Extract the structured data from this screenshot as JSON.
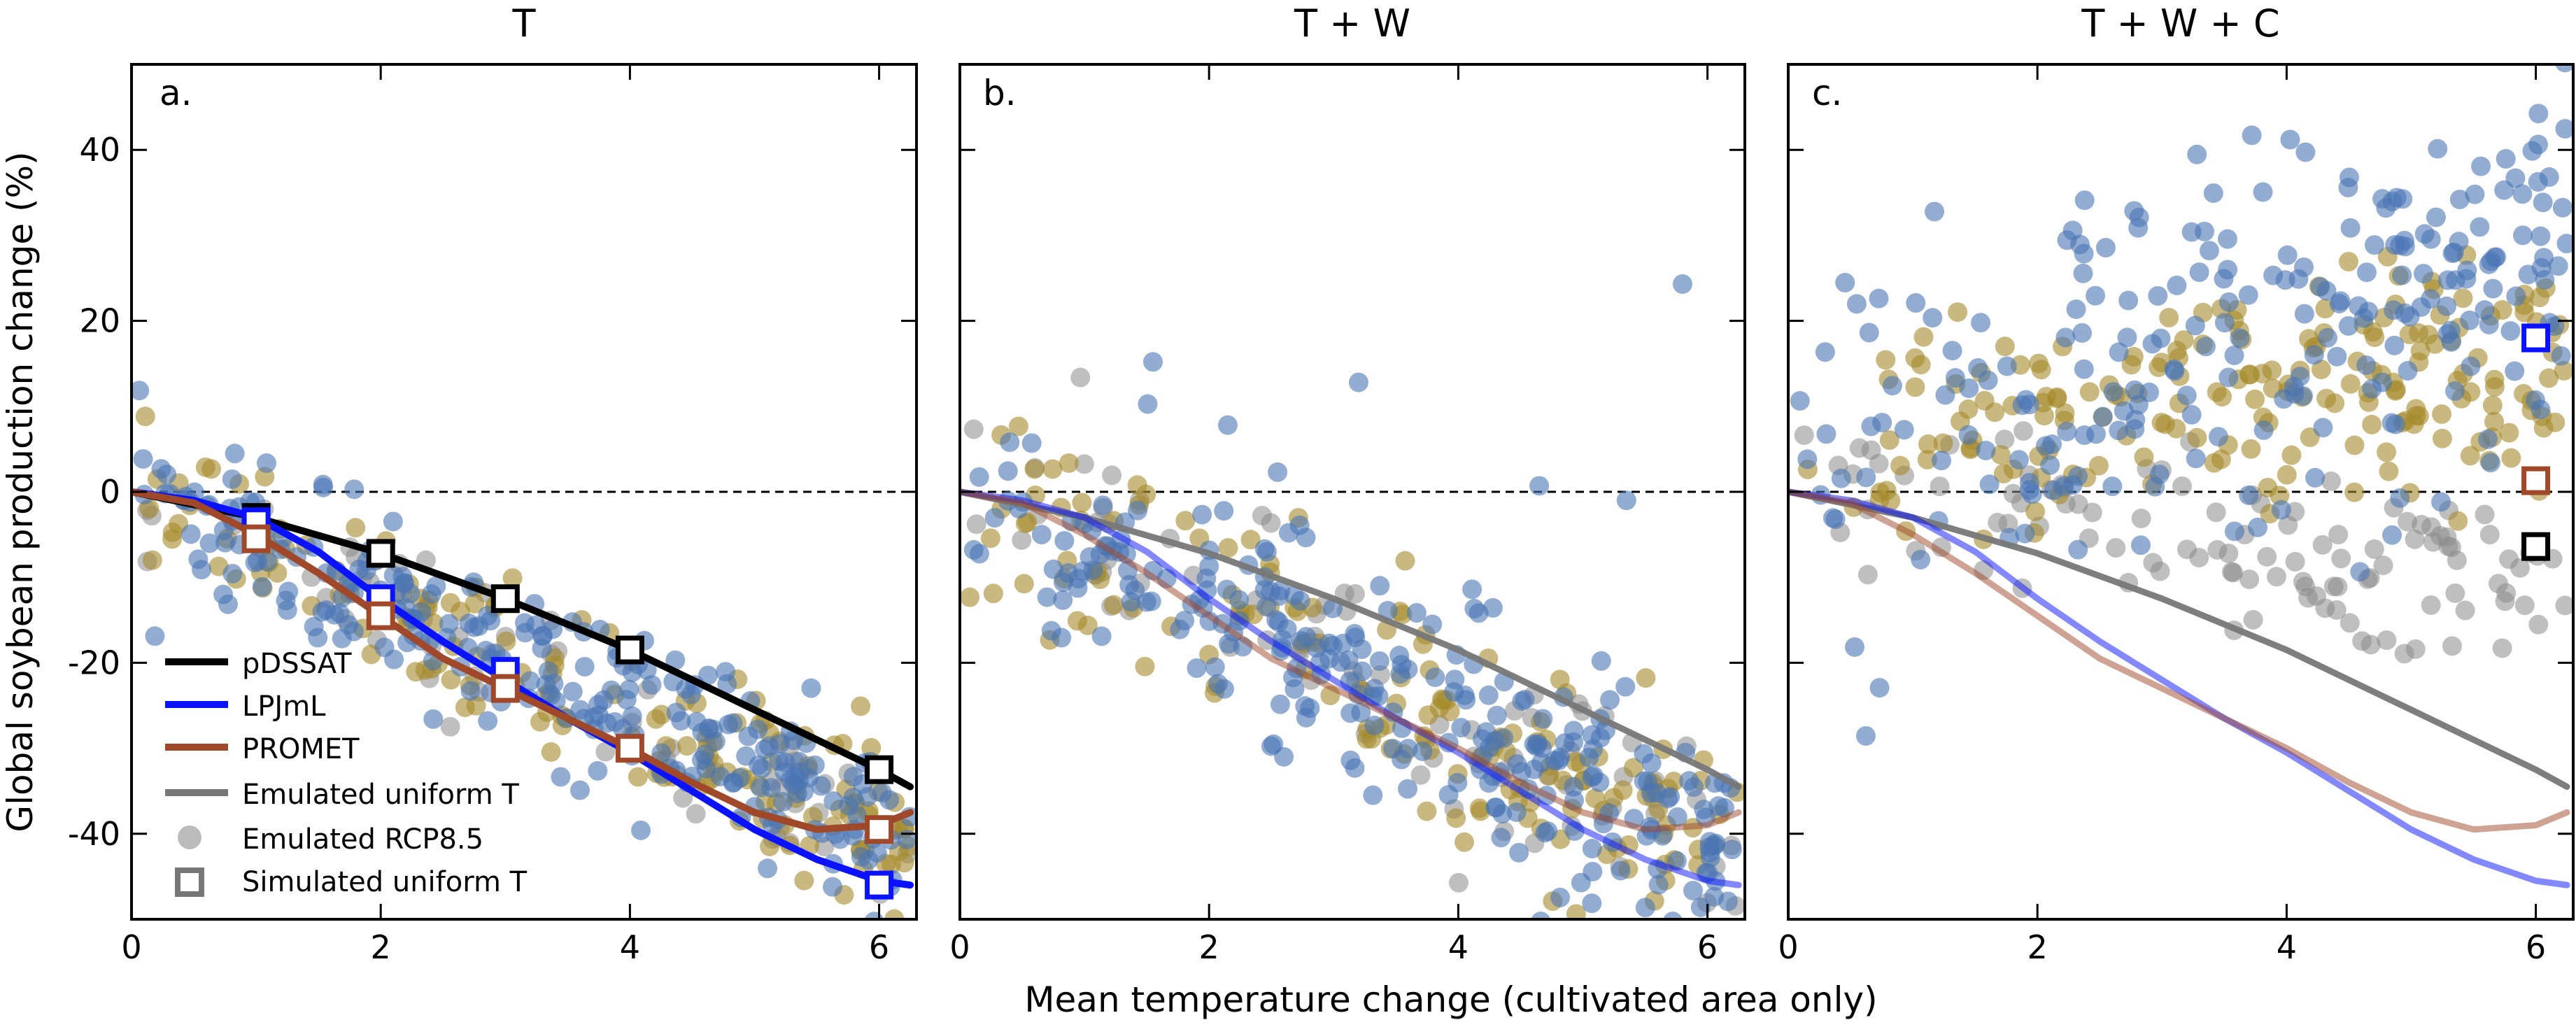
{
  "figure": {
    "ylabel": "Global soybean production change (%)",
    "xlabel": "Mean temperature change (cultivated area only)"
  },
  "colors": {
    "pDSSAT": "#000000",
    "LPJmL": "#0a12ff",
    "PROMET": "#a0482a",
    "emulated_uniform": "#777777",
    "scatter_blue": "#4a74b4",
    "scatter_gold": "#a58a2c",
    "scatter_grey": "#8a8a8a",
    "zero_line": "#000000"
  },
  "legend": {
    "items": [
      {
        "label": "pDSSAT",
        "style": "line",
        "color": "#000000"
      },
      {
        "label": "LPJmL",
        "style": "line",
        "color": "#0a12ff"
      },
      {
        "label": "PROMET",
        "style": "line",
        "color": "#a0482a"
      },
      {
        "label": "Emulated uniform T",
        "style": "line",
        "color": "#777777"
      },
      {
        "label": "Emulated RCP8.5",
        "style": "dot",
        "color": "#bbbbbb"
      },
      {
        "label": "Simulated uniform T",
        "style": "square",
        "color": "#777777"
      }
    ],
    "placement": "lower-left of panel a"
  },
  "chart_data": [
    {
      "type": "scatter",
      "title": "T",
      "panel_label": "a.",
      "xlim": [
        0,
        6.3
      ],
      "ylim": [
        -50,
        50
      ],
      "xticks": [
        0,
        2,
        4,
        6
      ],
      "yticks": [
        -40,
        -20,
        0,
        20,
        40
      ],
      "ytick_labels": [
        "-40",
        "-20",
        "0",
        "20",
        "40"
      ],
      "zero_line": true,
      "cloud": {
        "model": "slope",
        "slope": -6.5,
        "spread": 4.5,
        "xmax": 6.25,
        "counts": {
          "blue": 260,
          "gold": 160,
          "grey": 60
        }
      },
      "curves": [
        {
          "name": "pDSSAT",
          "x": [
            0,
            1,
            2,
            3,
            4,
            5,
            6,
            6.25
          ],
          "y": [
            0,
            -3,
            -7.2,
            -12.5,
            -18.5,
            -25.5,
            -32.5,
            -34.5
          ],
          "style": "solid"
        },
        {
          "name": "LPJmL",
          "x": [
            0,
            0.5,
            1,
            1.5,
            2,
            2.5,
            3,
            3.5,
            4,
            4.5,
            5,
            5.5,
            6,
            6.25
          ],
          "y": [
            0,
            -1,
            -3,
            -7,
            -12.5,
            -17.5,
            -22,
            -26.5,
            -30.5,
            -35,
            -39.5,
            -43,
            -45.5,
            -46
          ],
          "style": "solid"
        },
        {
          "name": "PROMET",
          "x": [
            0,
            0.5,
            1,
            1.5,
            2,
            2.5,
            3,
            3.5,
            4,
            4.5,
            5,
            5.5,
            6,
            6.25
          ],
          "y": [
            0,
            -1.3,
            -5,
            -9.5,
            -14.5,
            -19.5,
            -23,
            -26.5,
            -30,
            -34,
            -37.5,
            -39.5,
            -39,
            -37.5
          ],
          "style": "solid"
        }
      ],
      "squares": [
        {
          "series": "pDSSAT",
          "x": [
            1,
            2,
            3,
            4,
            6
          ],
          "y": [
            -3,
            -7.2,
            -12.5,
            -18.5,
            -32.5
          ]
        },
        {
          "series": "LPJmL",
          "x": [
            1,
            2,
            3,
            6
          ],
          "y": [
            -3.5,
            -12.5,
            -21,
            -46
          ]
        },
        {
          "series": "PROMET",
          "x": [
            1,
            2,
            3,
            4,
            6
          ],
          "y": [
            -5.5,
            -14.5,
            -23,
            -30,
            -39.5
          ]
        }
      ]
    },
    {
      "type": "scatter",
      "title": "T + W",
      "panel_label": "b.",
      "xlim": [
        0,
        6.3
      ],
      "ylim": [
        -50,
        50
      ],
      "xticks": [
        0,
        2,
        4,
        6
      ],
      "yticks": [
        -40,
        -20,
        0,
        20,
        40
      ],
      "ytick_labels": [],
      "zero_line": true,
      "cloud": {
        "model": "slope",
        "slope": -6.8,
        "spread": 6.5,
        "xmax": 6.25,
        "counts": {
          "blue": 270,
          "gold": 150,
          "grey": 80
        }
      },
      "outliers": [
        {
          "x": 1.55,
          "y": 15.2
        },
        {
          "x": 2.15,
          "y": 7.8
        },
        {
          "x": 3.2,
          "y": 12.8
        },
        {
          "x": 2.55,
          "y": 2.3
        },
        {
          "x": 5.8,
          "y": 24.3
        },
        {
          "x": 4.65,
          "y": 0.7
        },
        {
          "x": 5.35,
          "y": -1
        },
        {
          "x": 0.4,
          "y": 5.8
        },
        {
          "x": 2.6,
          "y": -31
        }
      ],
      "curves": [
        {
          "name": "pDSSAT",
          "x": [
            0,
            1,
            2,
            3,
            4,
            5,
            6,
            6.25
          ],
          "y": [
            0,
            -3,
            -7.2,
            -12.5,
            -18.5,
            -25.5,
            -32.5,
            -34.5
          ],
          "style": "emulated"
        },
        {
          "name": "LPJmL",
          "x": [
            0,
            0.5,
            1,
            1.5,
            2,
            2.5,
            3,
            3.5,
            4,
            4.5,
            5,
            5.5,
            6,
            6.25
          ],
          "y": [
            0,
            -1,
            -3,
            -7,
            -12.5,
            -17.5,
            -22,
            -26.5,
            -30.5,
            -35,
            -39.5,
            -43,
            -45.5,
            -46
          ],
          "style": "emulated"
        },
        {
          "name": "PROMET",
          "x": [
            0,
            0.5,
            1,
            1.5,
            2,
            2.5,
            3,
            3.5,
            4,
            4.5,
            5,
            5.5,
            6,
            6.25
          ],
          "y": [
            0,
            -1.3,
            -5,
            -9.5,
            -14.5,
            -19.5,
            -23,
            -26.5,
            -30,
            -34,
            -37.5,
            -39.5,
            -39,
            -37.5
          ],
          "style": "emulated"
        }
      ],
      "squares": []
    },
    {
      "type": "scatter",
      "title": "T + W + C",
      "panel_label": "c.",
      "xlim": [
        0,
        6.3
      ],
      "ylim": [
        -50,
        50
      ],
      "xticks": [
        0,
        2,
        4,
        6
      ],
      "yticks": [
        -40,
        -20,
        0,
        20,
        40
      ],
      "ytick_labels": [],
      "zero_line": true,
      "cloud": {
        "model": "co2",
        "xmax": 6.25,
        "counts": {
          "blue": 240,
          "gold": 200,
          "grey": 110
        }
      },
      "curves": [
        {
          "name": "pDSSAT",
          "x": [
            0,
            1,
            2,
            3,
            4,
            5,
            6,
            6.25
          ],
          "y": [
            0,
            -3,
            -7.2,
            -12.5,
            -18.5,
            -25.5,
            -32.5,
            -34.5
          ],
          "style": "emulated"
        },
        {
          "name": "LPJmL",
          "x": [
            0,
            0.5,
            1,
            1.5,
            2,
            2.5,
            3,
            3.5,
            4,
            4.5,
            5,
            5.5,
            6,
            6.25
          ],
          "y": [
            0,
            -1,
            -3,
            -7,
            -12.5,
            -17.5,
            -22,
            -26.5,
            -30.5,
            -35,
            -39.5,
            -43,
            -45.5,
            -46
          ],
          "style": "emulated"
        },
        {
          "name": "PROMET",
          "x": [
            0,
            0.5,
            1,
            1.5,
            2,
            2.5,
            3,
            3.5,
            4,
            4.5,
            5,
            5.5,
            6,
            6.25
          ],
          "y": [
            0,
            -1.3,
            -5,
            -9.5,
            -14.5,
            -19.5,
            -23,
            -26.5,
            -30,
            -34,
            -37.5,
            -39.5,
            -39,
            -37.5
          ],
          "style": "emulated"
        }
      ],
      "squares": [
        {
          "series": "LPJmL",
          "x": [
            6
          ],
          "y": [
            18
          ]
        },
        {
          "series": "PROMET",
          "x": [
            6
          ],
          "y": [
            1.3
          ]
        },
        {
          "series": "pDSSAT",
          "x": [
            6
          ],
          "y": [
            -6.4
          ]
        }
      ]
    }
  ]
}
